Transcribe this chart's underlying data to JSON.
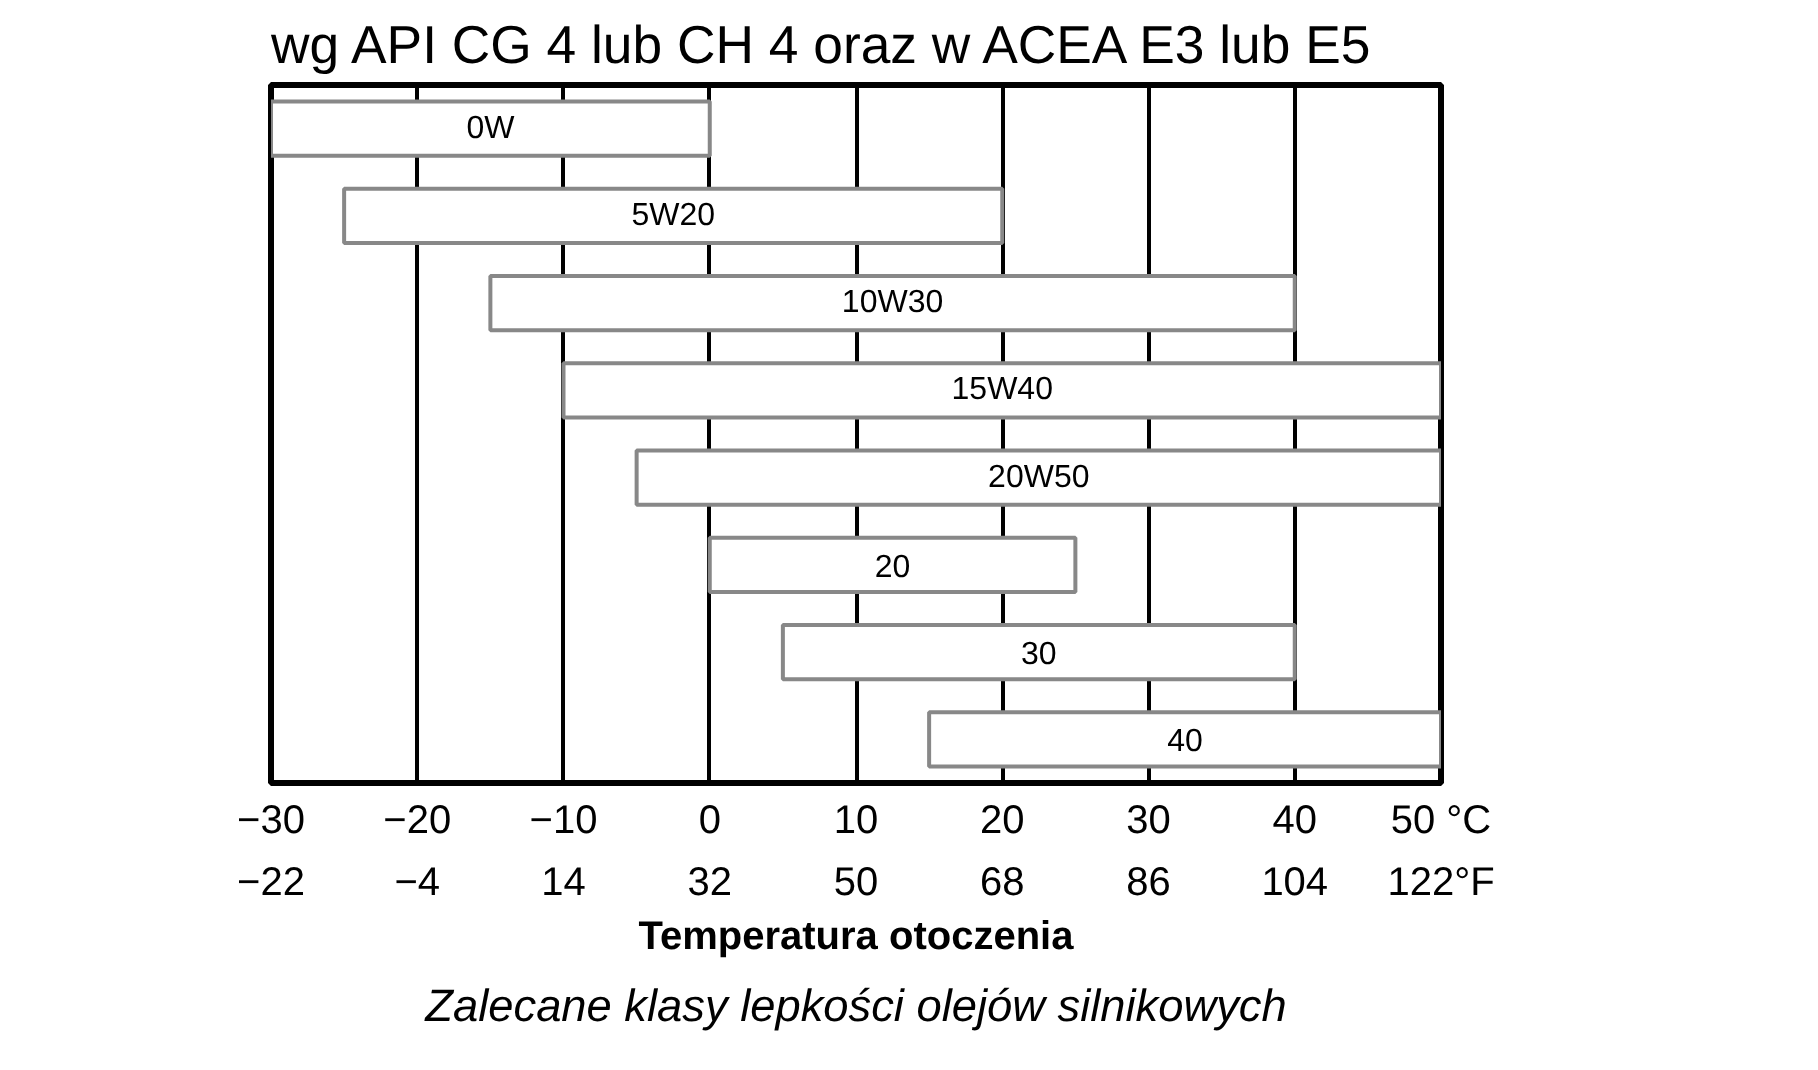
{
  "chart_data": {
    "type": "bar",
    "orientation": "horizontal",
    "title": "wg API CG 4 lub CH 4 oraz w ACEA E3 lub E5",
    "categories": [
      "0W",
      "5W20",
      "10W30",
      "15W40",
      "20W50",
      "20",
      "30",
      "40"
    ],
    "base": [
      -30,
      -25,
      -15,
      -10,
      -5,
      0,
      5,
      15
    ],
    "values": [
      30,
      45,
      55,
      60,
      55,
      25,
      35,
      35
    ],
    "color": "#ffffff",
    "xlim": [
      -30,
      50
    ],
    "xticks": [
      -30,
      -20,
      -10,
      0,
      10,
      20,
      30,
      40,
      {
        "value": 50,
        "label": "50 °C"
      }
    ],
    "x2lim": [
      -22,
      122
    ],
    "x2ticks": [
      -22,
      -4,
      14,
      32,
      50,
      68,
      86,
      104,
      {
        "value": 122,
        "label": "122°F"
      }
    ],
    "xlabel": "Temperatura otoczenia",
    "annotations": [
      "Zalecane klasy lepkości olejów silnikowych"
    ],
    "grid": "x"
  }
}
